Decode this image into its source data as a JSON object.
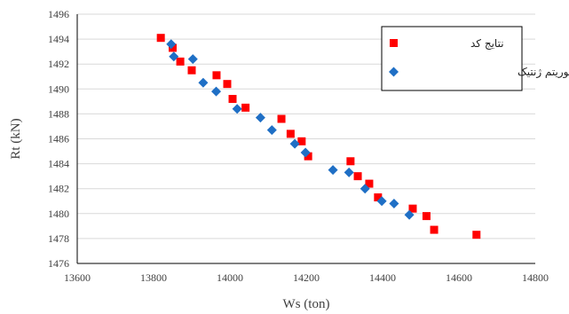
{
  "chart_data": {
    "type": "scatter",
    "xlabel": "Ws (ton)",
    "ylabel": "Rt (kN)",
    "xlim": [
      13600,
      14800
    ],
    "ylim": [
      1476,
      1496
    ],
    "x_ticks": [
      "13600",
      "13800",
      "14000",
      "14200",
      "14400",
      "14600",
      "14800"
    ],
    "y_ticks": [
      "1476",
      "1478",
      "1480",
      "1482",
      "1484",
      "1486",
      "1488",
      "1490",
      "1492",
      "1494",
      "1496"
    ],
    "grid": "horizontal",
    "legend_position": "top-right",
    "series": [
      {
        "name": "نتایج کد",
        "marker": "square",
        "color": "#ff0000",
        "points": [
          {
            "x": 13819,
            "y": 1494.1
          },
          {
            "x": 13850,
            "y": 1493.3
          },
          {
            "x": 13870,
            "y": 1492.2
          },
          {
            "x": 13900,
            "y": 1491.5
          },
          {
            "x": 13965,
            "y": 1491.1
          },
          {
            "x": 13993,
            "y": 1490.4
          },
          {
            "x": 14007,
            "y": 1489.2
          },
          {
            "x": 14041,
            "y": 1488.5
          },
          {
            "x": 14135,
            "y": 1487.6
          },
          {
            "x": 14159,
            "y": 1486.4
          },
          {
            "x": 14188,
            "y": 1485.8
          },
          {
            "x": 14205,
            "y": 1484.6
          },
          {
            "x": 14316,
            "y": 1484.2
          },
          {
            "x": 14335,
            "y": 1483.0
          },
          {
            "x": 14365,
            "y": 1482.4
          },
          {
            "x": 14388,
            "y": 1481.3
          },
          {
            "x": 14479,
            "y": 1480.4
          },
          {
            "x": 14515,
            "y": 1479.8
          },
          {
            "x": 14535,
            "y": 1478.7
          },
          {
            "x": 14646,
            "y": 1478.3
          }
        ]
      },
      {
        "name": "نتایج الگوریتم ژنتیک",
        "marker": "diamond",
        "color": "#1f6fc5",
        "points": [
          {
            "x": 13846,
            "y": 1493.6
          },
          {
            "x": 13853,
            "y": 1492.6
          },
          {
            "x": 13903,
            "y": 1492.4
          },
          {
            "x": 13930,
            "y": 1490.5
          },
          {
            "x": 13964,
            "y": 1489.8
          },
          {
            "x": 14019,
            "y": 1488.4
          },
          {
            "x": 14080,
            "y": 1487.7
          },
          {
            "x": 14110,
            "y": 1486.7
          },
          {
            "x": 14170,
            "y": 1485.6
          },
          {
            "x": 14198,
            "y": 1484.9
          },
          {
            "x": 14270,
            "y": 1483.5
          },
          {
            "x": 14312,
            "y": 1483.3
          },
          {
            "x": 14354,
            "y": 1482.0
          },
          {
            "x": 14398,
            "y": 1481.0
          },
          {
            "x": 14430,
            "y": 1480.8
          },
          {
            "x": 14470,
            "y": 1479.9
          }
        ]
      }
    ]
  }
}
